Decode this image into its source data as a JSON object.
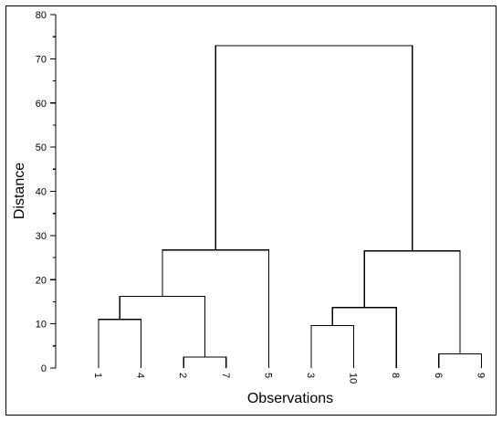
{
  "chart_data": {
    "type": "dendrogram",
    "xlabel": "Observations",
    "ylabel": "Distance",
    "ylim": [
      0,
      80
    ],
    "y_major_ticks": [
      0,
      10,
      20,
      30,
      40,
      50,
      60,
      70,
      80
    ],
    "y_minor_step": 5,
    "leaf_order": [
      "1",
      "4",
      "2",
      "7",
      "5",
      "3",
      "10",
      "8",
      "6",
      "9"
    ],
    "merges": [
      {
        "left": "2",
        "right": "7",
        "height": 2.5
      },
      {
        "left": "6",
        "right": "9",
        "height": 3.2
      },
      {
        "left": "3",
        "right": "10",
        "height": 9.6
      },
      {
        "left": "1",
        "right": "4",
        "height": 11.0
      },
      {
        "left": "{3,10}",
        "right": "8",
        "height": 13.7
      },
      {
        "left": "{1,4}",
        "right": "{2,7}",
        "height": 16.2
      },
      {
        "left": "{3,10,8}",
        "right": "{6,9}",
        "height": 26.5
      },
      {
        "left": "{1,4,2,7}",
        "right": "5",
        "height": 26.7
      },
      {
        "left": "{1,4,2,7,5}",
        "right": "{3,10,8,6,9}",
        "height": 73.0
      }
    ]
  }
}
